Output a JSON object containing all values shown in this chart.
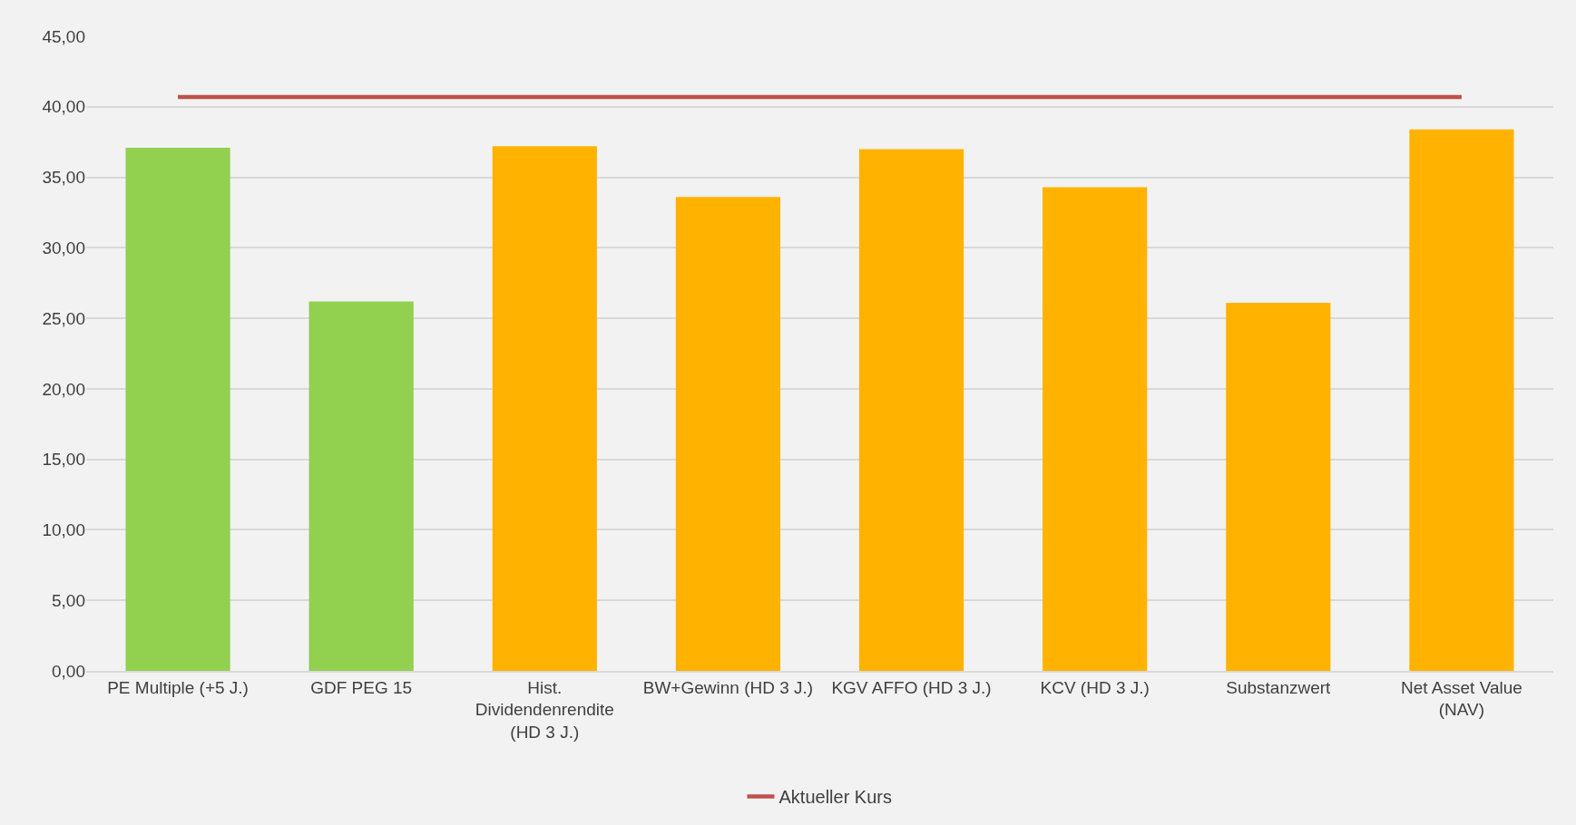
{
  "chart_data": {
    "type": "bar",
    "categories": [
      "PE Multiple (+5 J.)",
      "GDF PEG 15",
      "Hist. Dividendenrendite (HD 3 J.)",
      "BW+Gewinn (HD 3 J.)",
      "KGV AFFO (HD 3 J.)",
      "KCV (HD 3 J.)",
      "Substanzwert",
      "Net Asset Value (NAV)"
    ],
    "series": [
      {
        "colors": [
          "#92d050",
          "#92d050",
          "#ffb300",
          "#ffb300",
          "#ffb300",
          "#ffb300",
          "#ffb300",
          "#ffb300"
        ],
        "values": [
          37.1,
          26.2,
          37.2,
          33.6,
          37.0,
          34.3,
          26.1,
          38.4
        ]
      },
      {
        "type": "line",
        "name": "Aktueller Kurs",
        "color": "#c0504d",
        "values": [
          40.7,
          40.7,
          40.7,
          40.7,
          40.7,
          40.7,
          40.7,
          40.7
        ]
      }
    ],
    "ylim": [
      0,
      45
    ],
    "yticks": [
      {
        "value": 0,
        "label": "0,00"
      },
      {
        "value": 5,
        "label": "5,00"
      },
      {
        "value": 10,
        "label": "10,00"
      },
      {
        "value": 15,
        "label": "15,00"
      },
      {
        "value": 20,
        "label": "20,00"
      },
      {
        "value": 25,
        "label": "25,00"
      },
      {
        "value": 30,
        "label": "30,00"
      },
      {
        "value": 35,
        "label": "35,00"
      },
      {
        "value": 40,
        "label": "40,00"
      },
      {
        "value": 45,
        "label": "45,00"
      }
    ],
    "grid": "y",
    "legend": "bottom",
    "marker": "none",
    "line_style": "solid"
  }
}
